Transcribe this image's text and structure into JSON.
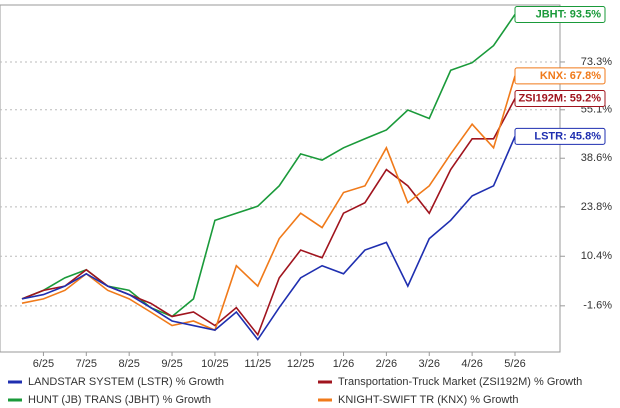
{
  "chart_data": {
    "type": "line",
    "y_scale": "log-growth",
    "categories": [
      null,
      "6/25",
      null,
      "7/25",
      null,
      "8/25",
      null,
      "9/25",
      null,
      "10/25",
      null,
      "11/25",
      null,
      "12/25",
      null,
      "1/26",
      null,
      "2/26",
      null,
      "3/26",
      null,
      "4/26",
      null,
      "5/26"
    ],
    "ylim": [
      -11.6,
      97.8
    ],
    "yticks": [
      {
        "value": -1.6,
        "label": "-1.6%"
      },
      {
        "value": 10.4,
        "label": "10.4%"
      },
      {
        "value": 23.8,
        "label": "23.8%"
      },
      {
        "value": 38.6,
        "label": "38.6%"
      },
      {
        "value": 55.1,
        "label": "55.1%"
      },
      {
        "value": 73.3,
        "label": "73.3%"
      }
    ],
    "grid": true,
    "series": [
      {
        "name": "LANDSTAR SYSTEM (LSTR) % Growth",
        "end_label": "LSTR: 45.8%",
        "color": "#1f2fb0",
        "values": [
          0,
          1,
          3,
          6,
          3,
          1,
          -2,
          -5,
          -6,
          -7,
          -3,
          -9,
          -2,
          5,
          8,
          6,
          12,
          14,
          3,
          15,
          20,
          27,
          30,
          45.8
        ]
      },
      {
        "name": "HUNT (JB) TRANS (JBHT) % Growth",
        "end_label": "JBHT: 93.5%",
        "color": "#1a9a3a",
        "values": [
          0,
          2,
          5,
          7,
          3,
          2,
          -2,
          -4,
          0,
          20,
          22,
          24,
          30,
          40,
          38,
          42,
          45,
          48,
          55,
          52,
          70,
          73,
          80,
          93.5
        ]
      },
      {
        "name": "Transportation-Truck Market (ZSI192M) % Growth",
        "end_label": "ZSI192M: 59.2%",
        "color": "#a0141e",
        "values": [
          0,
          2,
          3,
          7,
          3,
          1,
          -1,
          -4,
          -3,
          -6,
          -2,
          -8,
          5,
          12,
          10,
          22,
          25,
          35,
          30,
          22,
          35,
          45,
          45,
          59.2
        ]
      },
      {
        "name": "KNIGHT-SWIFT TR (KNX) % Growth",
        "end_label": "KNX: 67.8%",
        "color": "#f07a1a",
        "values": [
          -1,
          0,
          2,
          6,
          2,
          0,
          -3,
          -6,
          -5,
          -7,
          8,
          3,
          15,
          22,
          18,
          28,
          30,
          42,
          25,
          30,
          40,
          50,
          42,
          67.8
        ]
      }
    ]
  }
}
